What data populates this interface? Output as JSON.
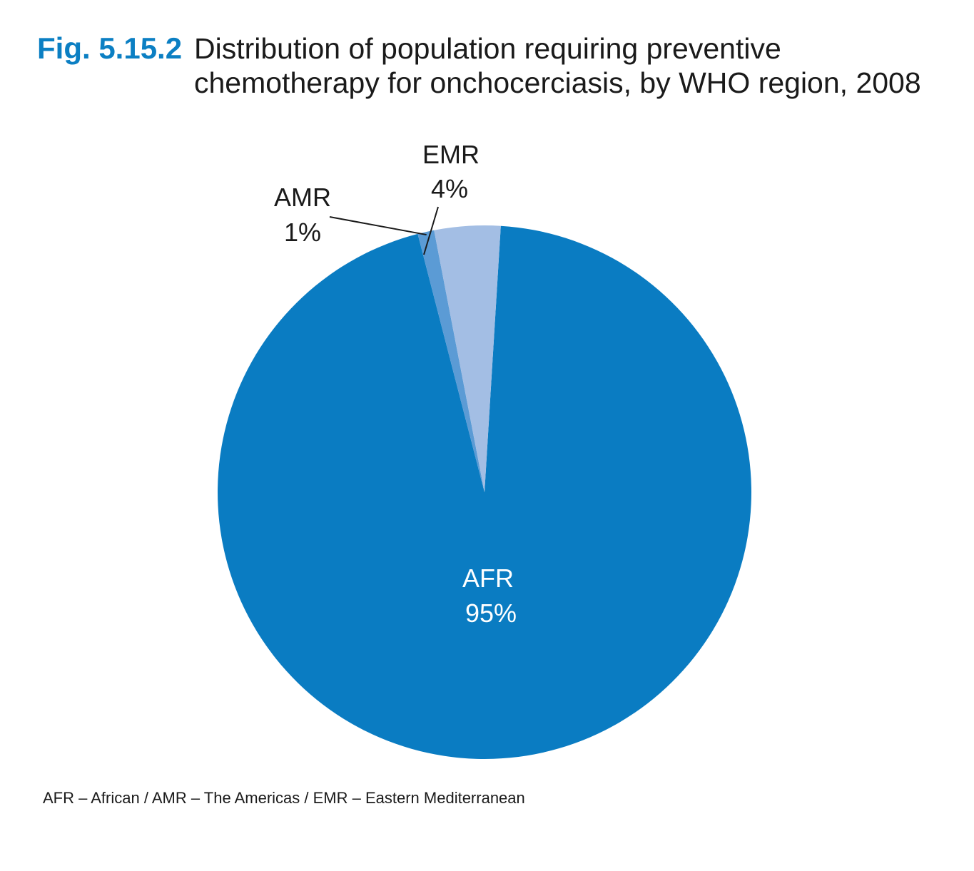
{
  "figure": {
    "number": "Fig. 5.15.2",
    "title": "Distribution of population requiring preventive chemotherapy for onchocerciasis, by WHO region, 2008"
  },
  "footnote": "AFR – African / AMR – The Americas / EMR – Eastern Mediterranean",
  "chart_data": {
    "type": "pie",
    "title": "Distribution of population requiring preventive chemotherapy for onchocerciasis, by WHO region, 2008",
    "slices": [
      {
        "label": "AFR",
        "value": 95,
        "value_label": "95%",
        "color": "#0a7cc2",
        "label_placement": "inside"
      },
      {
        "label": "AMR",
        "value": 1,
        "value_label": "1%",
        "color": "#5b9bd5",
        "label_placement": "outside-leader"
      },
      {
        "label": "EMR",
        "value": 4,
        "value_label": "4%",
        "color": "#a3bee4",
        "label_placement": "outside-leader"
      }
    ],
    "start": "top, clockwise",
    "legend": "none"
  }
}
